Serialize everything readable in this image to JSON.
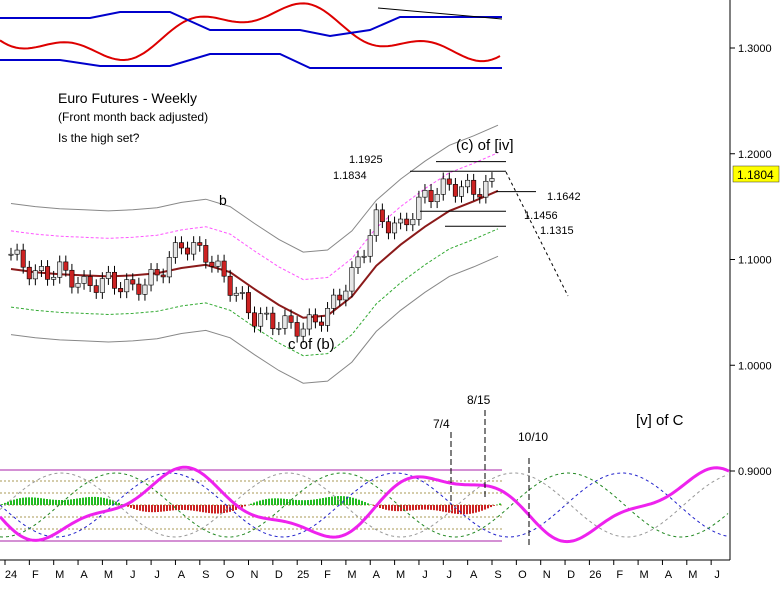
{
  "chart_data": {
    "type": "line",
    "title": "Euro Futures - Weekly",
    "subtitle": "(Front month back adjusted)",
    "question": "Is the high set?",
    "price_axis": {
      "ticks": [
        "1.3000",
        "1.2000",
        "1.1000",
        "1.0000",
        "0.9000"
      ],
      "current_price": "1.1804",
      "price_color": "#ffff00"
    },
    "x_ticks": [
      "24",
      "F",
      "M",
      "A",
      "M",
      "J",
      "J",
      "A",
      "S",
      "O",
      "N",
      "D",
      "25",
      "F",
      "M",
      "A",
      "M",
      "J",
      "J",
      "A",
      "S",
      "O",
      "N",
      "D",
      "26",
      "F",
      "M",
      "A",
      "M",
      "J"
    ],
    "annotations": {
      "wave_b": "b",
      "wave_c_of_b": "c of (b)",
      "wave_c_of_iv": "(c) of [iv]",
      "wave_v_of_c": "[v] of C",
      "level_high": "1.1925",
      "level_1834": "1.1834",
      "level_1642": "1.1642",
      "level_1456": "1.1456",
      "level_1315": "1.1315",
      "cycle_date_1": "7/4",
      "cycle_date_2": "8/15",
      "cycle_date_3": "10/10"
    },
    "series": [
      {
        "type": "candlestick",
        "up_color": "#e6e6e6",
        "down_color": "#cc2222",
        "x": [
          "24",
          "F",
          "M",
          "A",
          "M",
          "J",
          "J",
          "A",
          "S",
          "O",
          "N",
          "D",
          "25",
          "F",
          "M",
          "A",
          "M",
          "J",
          "J",
          "A",
          "S"
        ],
        "values": [
          1.105,
          1.085,
          1.09,
          1.075,
          1.08,
          1.072,
          1.085,
          1.115,
          1.105,
          1.075,
          1.045,
          1.04,
          1.035,
          1.05,
          1.085,
          1.138,
          1.13,
          1.16,
          1.17,
          1.165,
          1.172
        ]
      },
      {
        "type": "line",
        "color": "#8b1a1a",
        "x": [
          "24",
          "F",
          "M",
          "A",
          "M",
          "J",
          "J",
          "A",
          "S",
          "O",
          "N",
          "D",
          "25",
          "F",
          "M",
          "A",
          "M",
          "J",
          "J",
          "A",
          "S"
        ],
        "values": [
          1.091,
          1.088,
          1.086,
          1.085,
          1.084,
          1.085,
          1.087,
          1.092,
          1.095,
          1.088,
          1.072,
          1.057,
          1.045,
          1.047,
          1.065,
          1.094,
          1.114,
          1.131,
          1.146,
          1.155,
          1.165
        ]
      },
      {
        "type": "line",
        "color": "#ff55ff",
        "x": [
          "24",
          "F",
          "M",
          "A",
          "M",
          "J",
          "J",
          "A",
          "S",
          "O",
          "N",
          "D",
          "25",
          "F",
          "M",
          "A",
          "M",
          "J",
          "J",
          "A",
          "S"
        ],
        "values": [
          1.127,
          1.124,
          1.122,
          1.121,
          1.12,
          1.121,
          1.123,
          1.128,
          1.131,
          1.124,
          1.108,
          1.093,
          1.081,
          1.083,
          1.101,
          1.13,
          1.15,
          1.167,
          1.182,
          1.191,
          1.201
        ]
      },
      {
        "type": "line",
        "color": "#33aa33",
        "x": [
          "24",
          "F",
          "M",
          "A",
          "M",
          "J",
          "J",
          "A",
          "S",
          "O",
          "N",
          "D",
          "25",
          "F",
          "M",
          "A",
          "M",
          "J",
          "J",
          "A",
          "S"
        ],
        "values": [
          1.055,
          1.052,
          1.05,
          1.049,
          1.048,
          1.049,
          1.051,
          1.056,
          1.059,
          1.052,
          1.036,
          1.021,
          1.009,
          1.011,
          1.029,
          1.058,
          1.078,
          1.095,
          1.11,
          1.119,
          1.129
        ]
      },
      {
        "type": "line",
        "color": "#888888",
        "x": [
          "24",
          "F",
          "M",
          "A",
          "M",
          "J",
          "J",
          "A",
          "S",
          "O",
          "N",
          "D",
          "25",
          "F",
          "M",
          "A",
          "M",
          "J",
          "J",
          "A",
          "S"
        ],
        "values": [
          1.153,
          1.15,
          1.148,
          1.147,
          1.146,
          1.147,
          1.149,
          1.154,
          1.157,
          1.15,
          1.134,
          1.119,
          1.107,
          1.109,
          1.127,
          1.156,
          1.176,
          1.193,
          1.208,
          1.217,
          1.227
        ]
      },
      {
        "type": "line",
        "color": "#888888",
        "x": [
          "24",
          "F",
          "M",
          "A",
          "M",
          "J",
          "J",
          "A",
          "S",
          "O",
          "N",
          "D",
          "25",
          "F",
          "M",
          "A",
          "M",
          "J",
          "J",
          "A",
          "S"
        ],
        "values": [
          1.029,
          1.026,
          1.024,
          1.023,
          1.022,
          1.023,
          1.025,
          1.03,
          1.033,
          1.026,
          1.01,
          0.995,
          0.983,
          0.985,
          1.003,
          1.032,
          1.052,
          1.069,
          1.084,
          1.093,
          1.103
        ]
      },
      {
        "type": "oscillator",
        "panel": "top",
        "color": "#dd0000",
        "band_color": "#0000cc"
      },
      {
        "type": "cycle",
        "panel": "bottom",
        "color": "#ee22ee",
        "histogram_up": "#22bb22",
        "histogram_down": "#cc2222"
      }
    ],
    "grid": false
  }
}
